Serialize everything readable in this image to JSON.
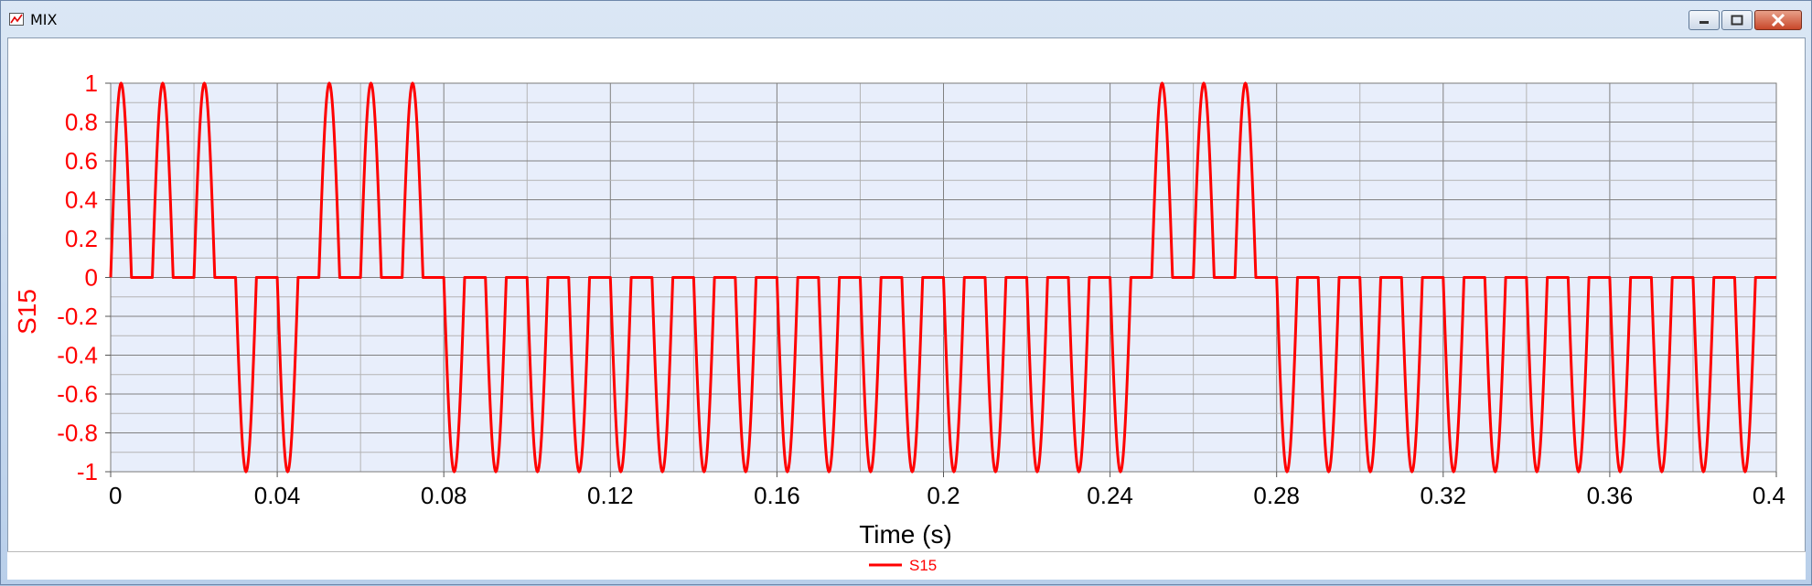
{
  "window": {
    "title": "MIX"
  },
  "colors": {
    "series": "#ff0000",
    "plot_bg": "#e8eefb",
    "grid_major": "#808080",
    "grid_minor": "#b4b4b4"
  },
  "icons": {
    "app": "chart-icon",
    "minimize": "minimize-icon",
    "maximize": "maximize-icon",
    "close": "close-icon"
  },
  "chart_data": {
    "type": "line",
    "title": "",
    "xlabel": "Time (s)",
    "ylabel": "S15",
    "xlim": [
      0,
      0.4
    ],
    "ylim": [
      -1,
      1
    ],
    "x_ticks": [
      "0",
      "0.04",
      "0.08",
      "0.12",
      "0.16",
      "0.2",
      "0.24",
      "0.28",
      "0.32",
      "0.36",
      "0.4"
    ],
    "y_ticks": [
      "1",
      "0.8",
      "0.6",
      "0.4",
      "0.2",
      "0",
      "-0.2",
      "-0.4",
      "-0.6",
      "-0.8",
      "-1"
    ],
    "grid": true,
    "legend_position": "bottom-center",
    "series": [
      {
        "name": "S15",
        "color": "#ff0000",
        "pulse_width": 0.005,
        "pulses": [
          {
            "t": 0.0,
            "amp": 1
          },
          {
            "t": 0.01,
            "amp": 1
          },
          {
            "t": 0.02,
            "amp": 1
          },
          {
            "t": 0.03,
            "amp": -1
          },
          {
            "t": 0.04,
            "amp": -1
          },
          {
            "t": 0.05,
            "amp": 1
          },
          {
            "t": 0.06,
            "amp": 1
          },
          {
            "t": 0.07,
            "amp": 1
          },
          {
            "t": 0.08,
            "amp": -1
          },
          {
            "t": 0.09,
            "amp": -1
          },
          {
            "t": 0.1,
            "amp": -1
          },
          {
            "t": 0.11,
            "amp": -1
          },
          {
            "t": 0.12,
            "amp": -1
          },
          {
            "t": 0.13,
            "amp": -1
          },
          {
            "t": 0.14,
            "amp": -1
          },
          {
            "t": 0.15,
            "amp": -1
          },
          {
            "t": 0.16,
            "amp": -1
          },
          {
            "t": 0.17,
            "amp": -1
          },
          {
            "t": 0.18,
            "amp": -1
          },
          {
            "t": 0.19,
            "amp": -1
          },
          {
            "t": 0.2,
            "amp": -1
          },
          {
            "t": 0.21,
            "amp": -1
          },
          {
            "t": 0.22,
            "amp": -1
          },
          {
            "t": 0.23,
            "amp": -1
          },
          {
            "t": 0.24,
            "amp": -1
          },
          {
            "t": 0.25,
            "amp": 1
          },
          {
            "t": 0.26,
            "amp": 1
          },
          {
            "t": 0.27,
            "amp": 1
          },
          {
            "t": 0.28,
            "amp": -1
          },
          {
            "t": 0.29,
            "amp": -1
          },
          {
            "t": 0.3,
            "amp": -1
          },
          {
            "t": 0.31,
            "amp": -1
          },
          {
            "t": 0.32,
            "amp": -1
          },
          {
            "t": 0.33,
            "amp": -1
          },
          {
            "t": 0.34,
            "amp": -1
          },
          {
            "t": 0.35,
            "amp": -1
          },
          {
            "t": 0.36,
            "amp": -1
          },
          {
            "t": 0.37,
            "amp": -1
          },
          {
            "t": 0.38,
            "amp": -1
          },
          {
            "t": 0.39,
            "amp": -1
          }
        ]
      }
    ]
  }
}
